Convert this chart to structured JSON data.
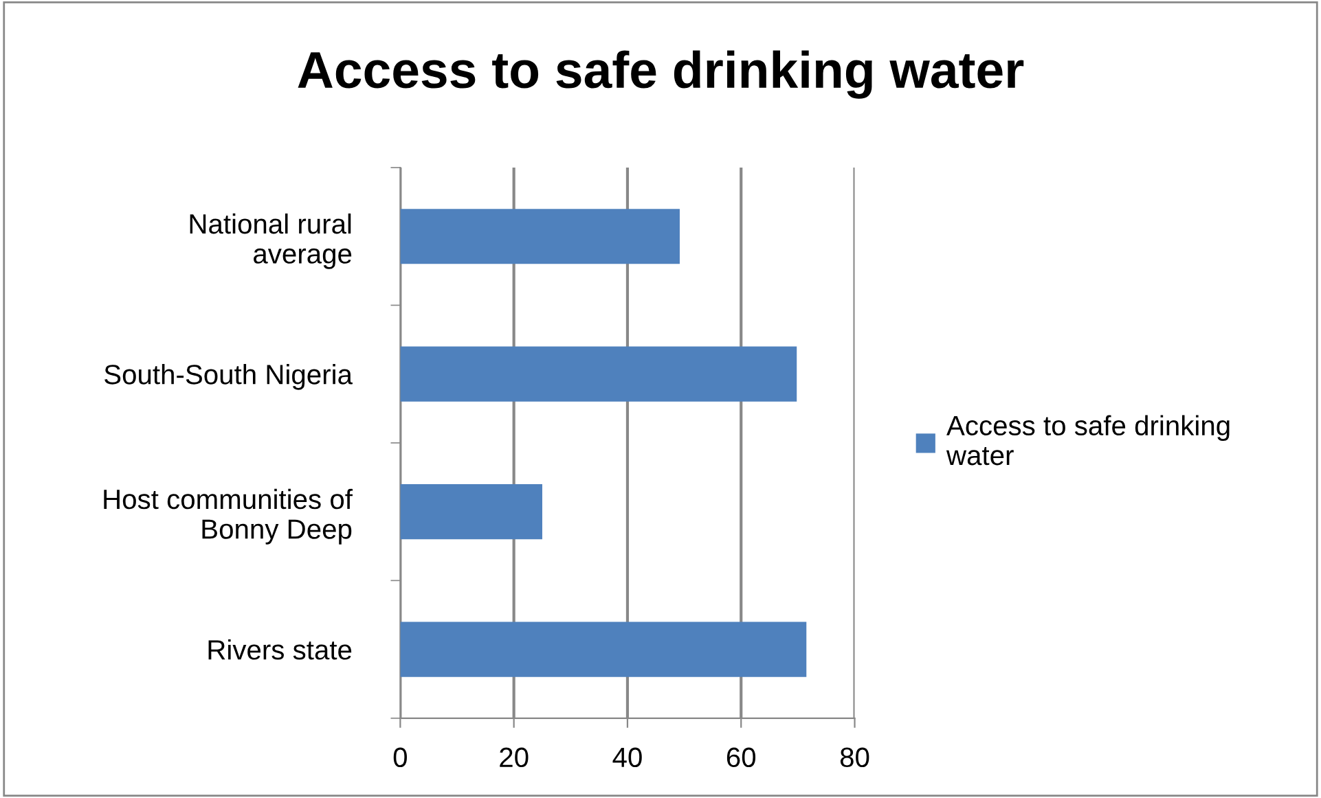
{
  "chart_data": {
    "type": "bar",
    "orientation": "horizontal",
    "title": "Access to safe drinking water",
    "categories": [
      "National rural average",
      "South-South Nigeria",
      "Host communities of Bonny Deep",
      "Rivers state"
    ],
    "series": [
      {
        "name": "Access to safe drinking water",
        "color": "#4f81bd",
        "values": [
          49.2,
          69.8,
          25,
          71.5
        ]
      }
    ],
    "xlim": [
      0,
      80
    ],
    "xticks": [
      0,
      20,
      40,
      60,
      80
    ],
    "grid": "x",
    "legend": "right"
  }
}
